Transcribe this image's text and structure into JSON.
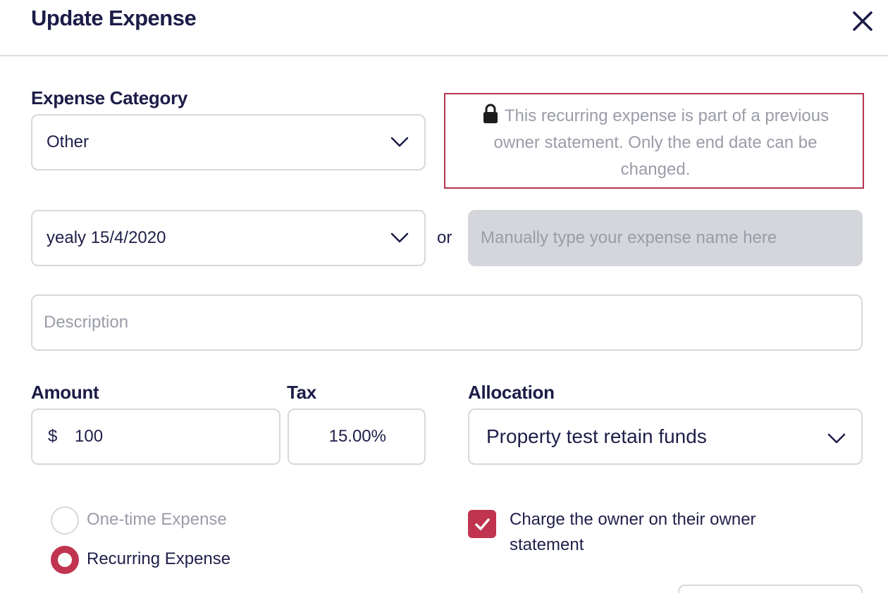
{
  "dialog": {
    "title": "Update Expense"
  },
  "expense_category": {
    "label": "Expense Category",
    "selected": "Other"
  },
  "notice": {
    "text": "This recurring expense is part of a previous owner statement. Only the end date can be changed."
  },
  "expense_name": {
    "selected": "yealy 15/4/2020",
    "or_text": "or",
    "manual_placeholder": "Manually type your expense name here"
  },
  "description": {
    "placeholder": "Description"
  },
  "amount": {
    "label": "Amount",
    "currency": "$",
    "value": "100"
  },
  "tax": {
    "label": "Tax",
    "value": "15.00%"
  },
  "allocation": {
    "label": "Allocation",
    "selected": "Property test retain funds"
  },
  "expense_type": {
    "options": [
      {
        "label": "One-time Expense",
        "selected": false
      },
      {
        "label": "Recurring Expense",
        "selected": true
      }
    ]
  },
  "charge_owner": {
    "checked": true,
    "label": "Charge the owner on their owner statement"
  },
  "colors": {
    "accent": "#c0344f",
    "text": "#1f1f4a",
    "placeholder": "#9a9ca8",
    "border": "#d6d8de",
    "disabled_bg": "#d4d6dc"
  }
}
